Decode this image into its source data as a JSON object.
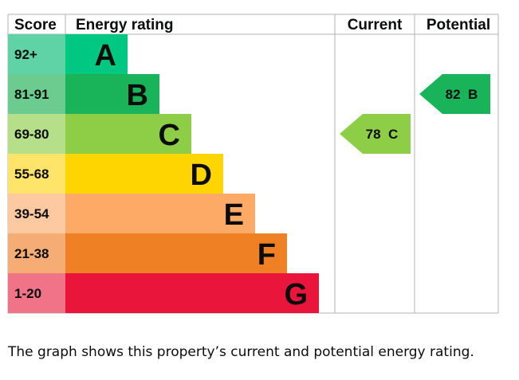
{
  "chart_data": {
    "type": "epc-rating-bar",
    "headers": {
      "score": "Score",
      "rating": "Energy rating",
      "current": "Current",
      "potential": "Potential"
    },
    "bands": [
      {
        "score": "92+",
        "letter": "A",
        "color": "#00c781",
        "score_bg": "#5fd3a6",
        "letter_color": "#0b0c0c"
      },
      {
        "score": "81-91",
        "letter": "B",
        "color": "#19b459",
        "score_bg": "#6ccb8f",
        "letter_color": "#0b0c0c"
      },
      {
        "score": "69-80",
        "letter": "C",
        "color": "#8dce46",
        "score_bg": "#b6df8a",
        "letter_color": "#0b0c0c"
      },
      {
        "score": "55-68",
        "letter": "D",
        "color": "#ffd500",
        "score_bg": "#ffe46a",
        "letter_color": "#0b0c0c"
      },
      {
        "score": "39-54",
        "letter": "E",
        "color": "#fcaa65",
        "score_bg": "#fdc9a0",
        "letter_color": "#0b0c0c"
      },
      {
        "score": "21-38",
        "letter": "F",
        "color": "#ef8023",
        "score_bg": "#f5ad75",
        "letter_color": "#0b0c0c"
      },
      {
        "score": "1-20",
        "letter": "G",
        "color": "#e9153b",
        "score_bg": "#f07388",
        "letter_color": "#0b0c0c"
      }
    ],
    "current": {
      "value": 78,
      "letter": "C",
      "label": "78  C",
      "color": "#8dce46"
    },
    "potential": {
      "value": 82,
      "letter": "B",
      "label": "82  B",
      "color": "#19b459"
    }
  },
  "caption": "The graph shows this property’s current and potential energy rating."
}
